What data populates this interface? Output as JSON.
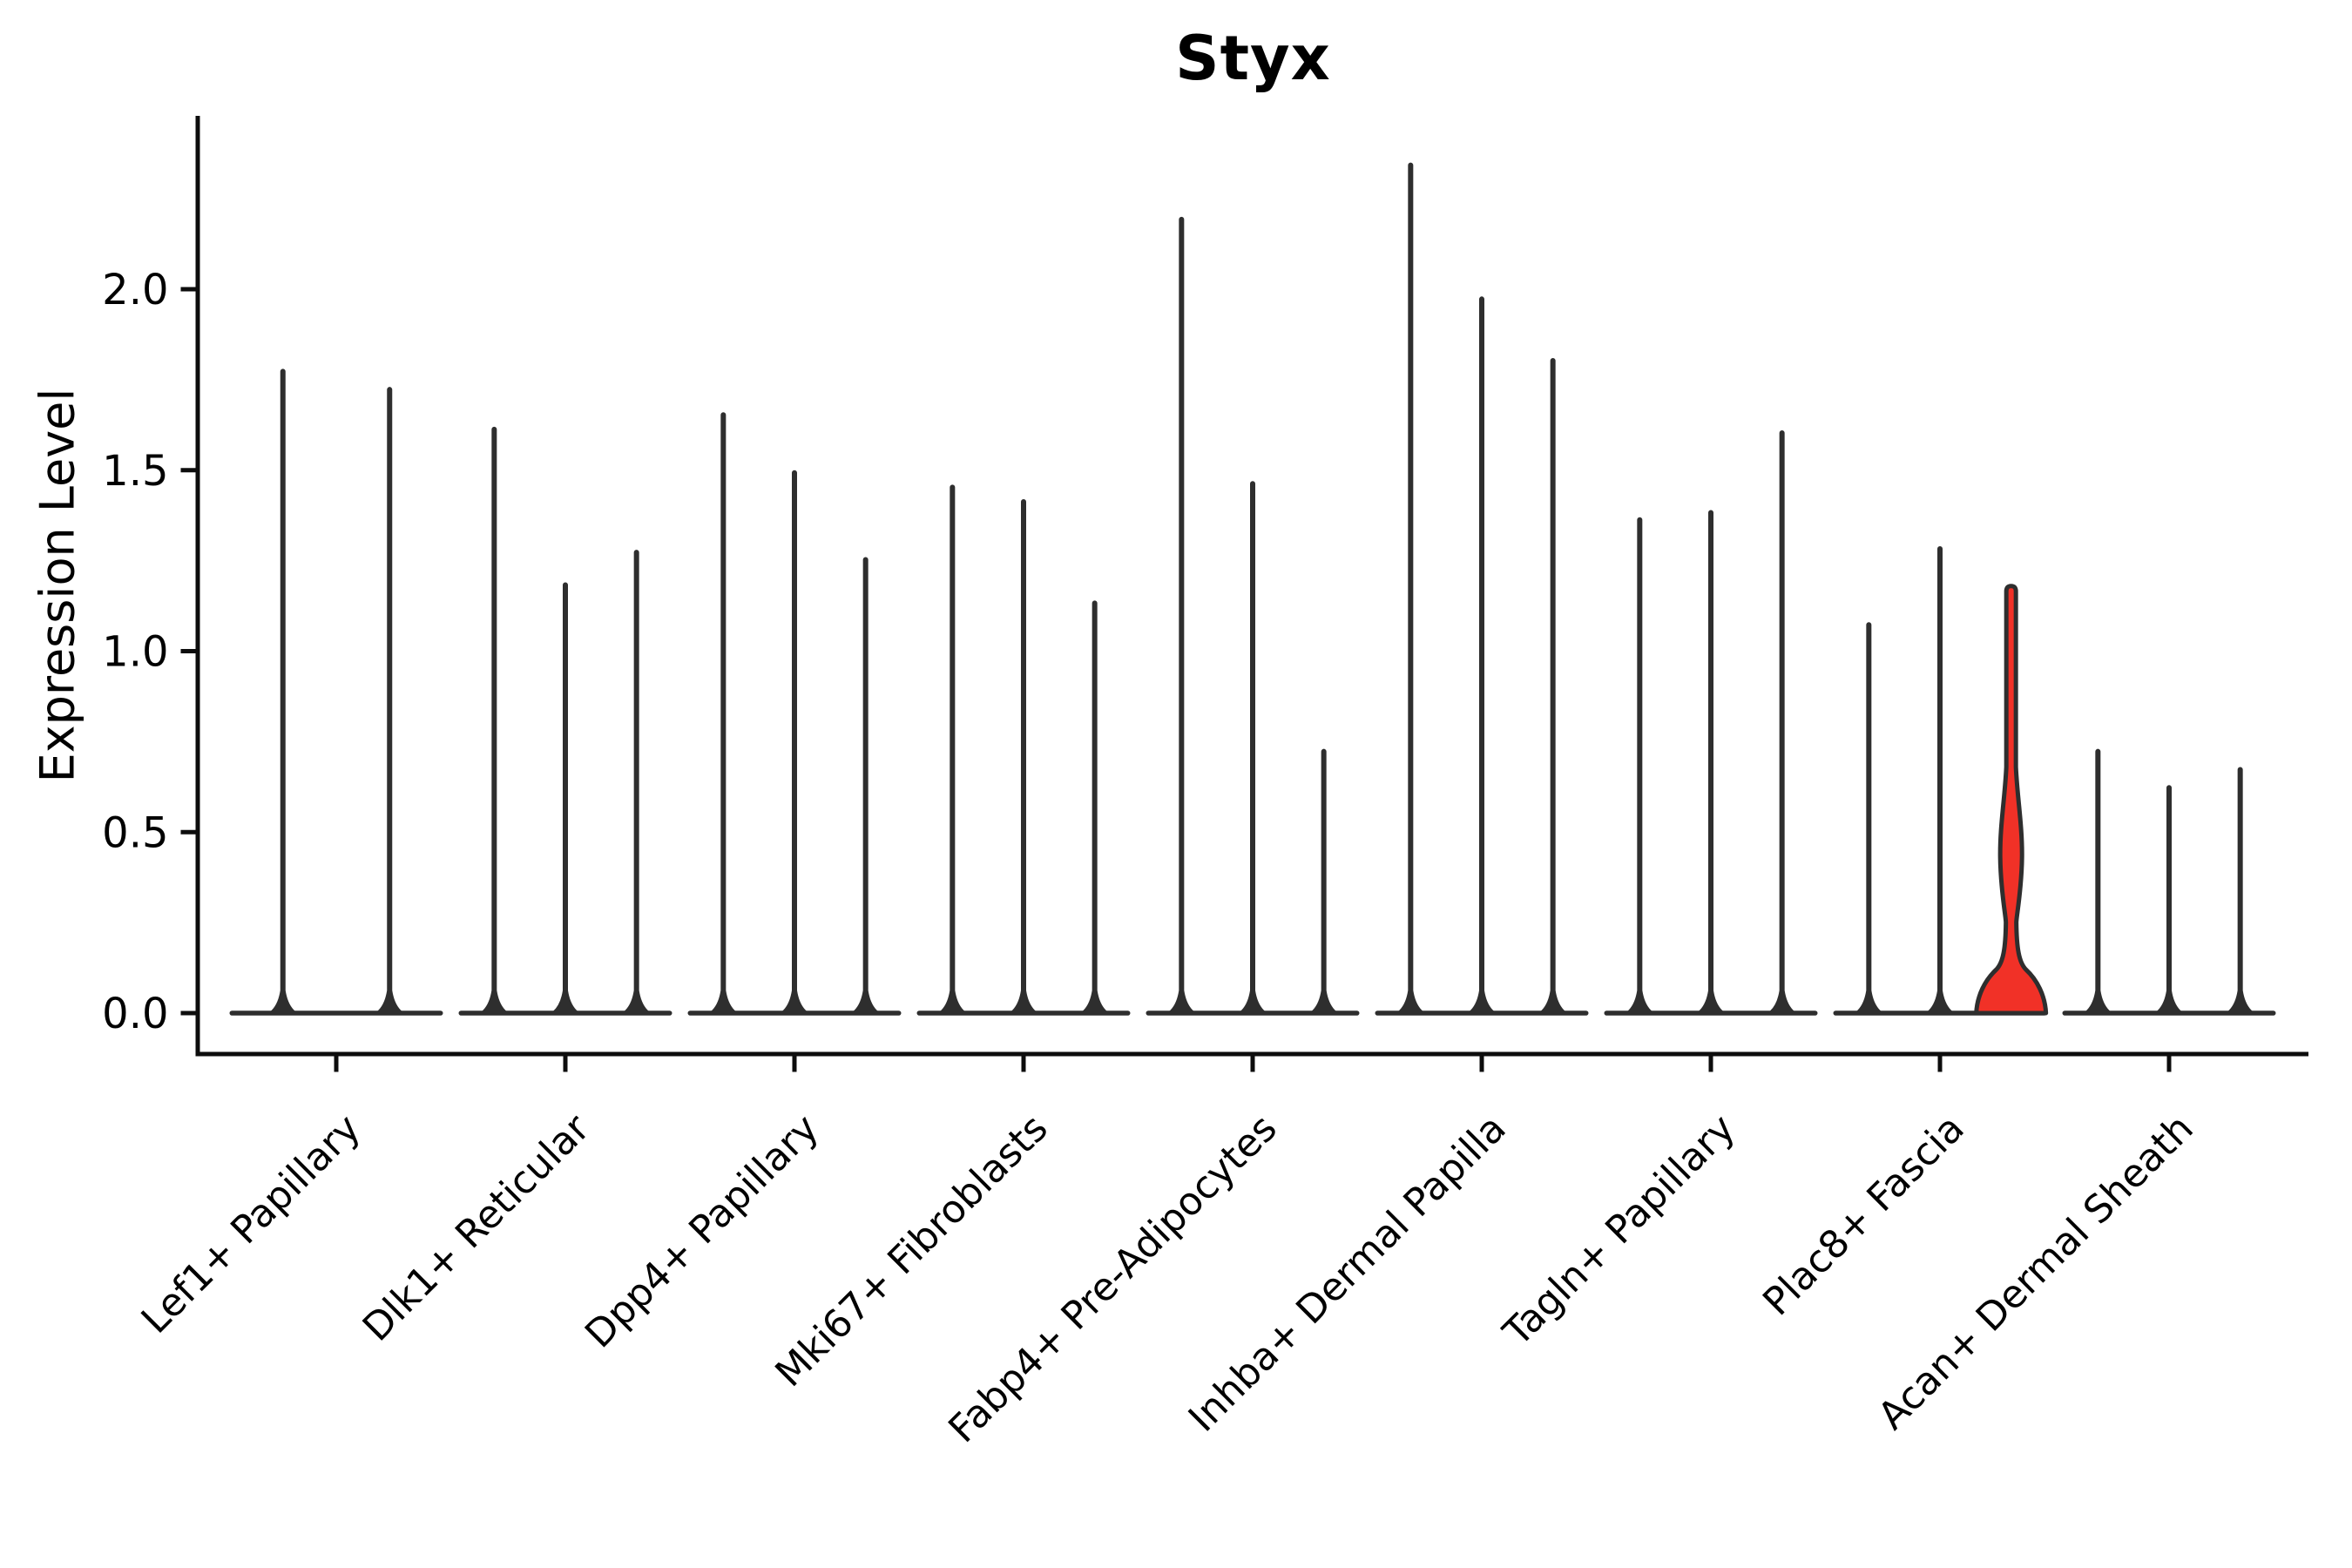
{
  "chart_data": {
    "type": "violin",
    "title": "Styx",
    "ylabel": "Expression Level",
    "xlabel": "",
    "grid": false,
    "legend": null,
    "x_tick_rotation": 45,
    "y_axis": {
      "tick_labels": [
        "0.0",
        "0.5",
        "1.0",
        "1.5",
        "2.0"
      ],
      "tick_values": [
        0.0,
        0.5,
        1.0,
        1.5,
        2.0
      ],
      "range_shown": [
        -0.11,
        2.48
      ]
    },
    "colors": {
      "ink": "#2e2e2e",
      "spine": "#0d0d0d",
      "text": "#000000",
      "highlight_fill": "#f13127",
      "background": "#ffffff"
    },
    "groups": [
      {
        "category": "Lef1+ Papillary",
        "violins": [
          {
            "max": 1.78
          },
          {
            "max": 1.73
          }
        ]
      },
      {
        "category": "Dlk1+ Reticular",
        "violins": [
          {
            "max": 1.62
          },
          {
            "max": 1.19
          },
          {
            "max": 1.28
          }
        ]
      },
      {
        "category": "Dpp4+ Papillary",
        "violins": [
          {
            "max": 1.66
          },
          {
            "max": 1.5
          },
          {
            "max": 1.26
          }
        ]
      },
      {
        "category": "Mki67+ Fibroblasts",
        "violins": [
          {
            "max": 1.46
          },
          {
            "max": 1.42
          },
          {
            "max": 1.14
          }
        ]
      },
      {
        "category": "Fabp4+ Pre-Adipocytes",
        "violins": [
          {
            "max": 2.2
          },
          {
            "max": 1.47
          },
          {
            "max": 0.73
          }
        ]
      },
      {
        "category": "Inhba+ Dermal Papilla",
        "violins": [
          {
            "max": 2.35
          },
          {
            "max": 1.98
          },
          {
            "max": 1.81
          }
        ]
      },
      {
        "category": "Tagln+ Papillary",
        "violins": [
          {
            "max": 1.37
          },
          {
            "max": 1.39
          },
          {
            "max": 1.61
          }
        ]
      },
      {
        "category": "Plac8+ Fascia",
        "violins": [
          {
            "max": 1.08
          },
          {
            "max": 1.29
          },
          {
            "max": 1.18,
            "highlighted": true,
            "bulge": {
              "bell_top": 0.25,
              "neck": 0.22,
              "spindle_peak": 0.43,
              "spindle_top": 0.68
            }
          }
        ]
      },
      {
        "category": "Acan+ Dermal Sheath",
        "violins": [
          {
            "max": 0.73
          },
          {
            "max": 0.63
          },
          {
            "max": 0.68
          }
        ]
      }
    ]
  }
}
